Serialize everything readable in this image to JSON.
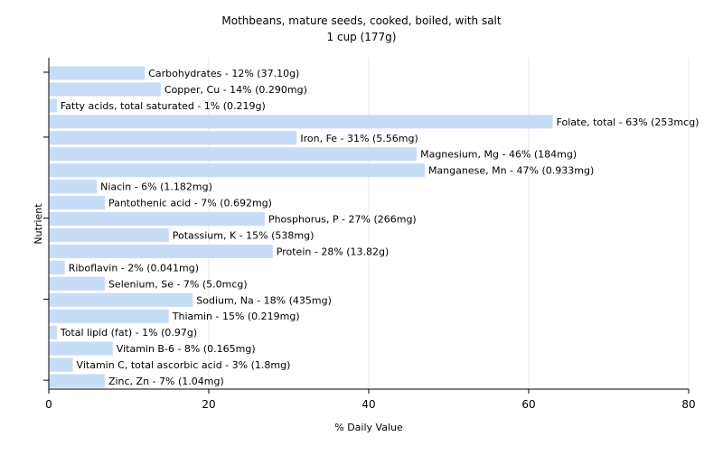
{
  "chart_data": {
    "type": "bar",
    "orientation": "horizontal",
    "title": "Mothbeans, mature seeds, cooked, boiled, with salt",
    "subtitle": "1 cup (177g)",
    "xlabel": "% Daily Value",
    "ylabel": "Nutrient",
    "xlim": [
      0,
      80
    ],
    "xticks": [
      "0",
      "20",
      "40",
      "60",
      "80"
    ],
    "grid": true,
    "legend": "none",
    "colors": {
      "bar": "#c6dcf7",
      "grid": "#e8e8e8",
      "axis": "#000000"
    },
    "categories": [
      "Carbohydrates",
      "Copper, Cu",
      "Fatty acids, total saturated",
      "Folate, total",
      "Iron, Fe",
      "Magnesium, Mg",
      "Manganese, Mn",
      "Niacin",
      "Pantothenic acid",
      "Phosphorus, P",
      "Potassium, K",
      "Protein",
      "Riboflavin",
      "Selenium, Se",
      "Sodium, Na",
      "Thiamin",
      "Total lipid (fat)",
      "Vitamin B-6",
      "Vitamin C, total ascorbic acid",
      "Zinc, Zn"
    ],
    "values": [
      12,
      14,
      1,
      63,
      31,
      46,
      47,
      6,
      7,
      27,
      15,
      28,
      2,
      7,
      18,
      15,
      1,
      8,
      3,
      7
    ],
    "labels": [
      "Carbohydrates - 12% (37.10g)",
      "Copper, Cu - 14% (0.290mg)",
      "Fatty acids, total saturated - 1% (0.219g)",
      "Folate, total - 63% (253mcg)",
      "Iron, Fe - 31% (5.56mg)",
      "Magnesium, Mg - 46% (184mg)",
      "Manganese, Mn - 47% (0.933mg)",
      "Niacin - 6% (1.182mg)",
      "Pantothenic acid - 7% (0.692mg)",
      "Phosphorus, P - 27% (266mg)",
      "Potassium, K - 15% (538mg)",
      "Protein - 28% (13.82g)",
      "Riboflavin - 2% (0.041mg)",
      "Selenium, Se - 7% (5.0mcg)",
      "Sodium, Na - 18% (435mg)",
      "Thiamin - 15% (0.219mg)",
      "Total lipid (fat) - 1% (0.97g)",
      "Vitamin B-6 - 8% (0.165mg)",
      "Vitamin C, total ascorbic acid - 3% (1.8mg)",
      "Zinc, Zn - 7% (1.04mg)"
    ]
  }
}
